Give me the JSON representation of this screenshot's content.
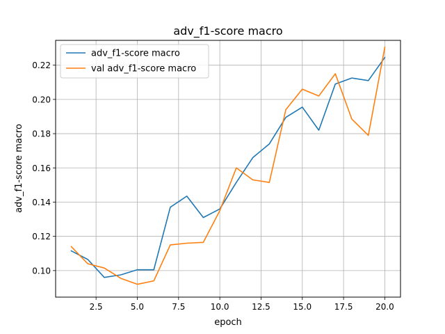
{
  "chart_data": {
    "type": "line",
    "title": "adv_f1-score macro",
    "xlabel": "epoch",
    "ylabel": "adv_f1-score macro",
    "xlim": [
      0.05,
      20.95
    ],
    "ylim": [
      0.0845,
      0.2345
    ],
    "x_ticks": [
      2.5,
      5.0,
      7.5,
      10.0,
      12.5,
      15.0,
      17.5,
      20.0
    ],
    "x_tick_labels": [
      "2.5",
      "5.0",
      "7.5",
      "10.0",
      "12.5",
      "15.0",
      "17.5",
      "20.0"
    ],
    "y_ticks": [
      0.1,
      0.12,
      0.14,
      0.16,
      0.18,
      0.2,
      0.22
    ],
    "y_tick_labels": [
      "0.10",
      "0.12",
      "0.14",
      "0.16",
      "0.18",
      "0.20",
      "0.22"
    ],
    "grid": true,
    "legend_position": "top-left",
    "x": [
      1,
      2,
      3,
      4,
      5,
      6,
      7,
      8,
      9,
      10,
      11,
      12,
      13,
      14,
      15,
      16,
      17,
      18,
      19,
      20
    ],
    "series": [
      {
        "name": "adv_f1-score macro",
        "color": "#1f77b4",
        "values": [
          0.1115,
          0.1065,
          0.096,
          0.0975,
          0.1005,
          0.1005,
          0.137,
          0.1435,
          0.131,
          0.136,
          0.1515,
          0.166,
          0.174,
          0.1895,
          0.1955,
          0.182,
          0.209,
          0.2125,
          0.211,
          0.2245
        ]
      },
      {
        "name": "val adv_f1-score macro",
        "color": "#ff7f0e",
        "values": [
          0.114,
          0.104,
          0.1015,
          0.0955,
          0.092,
          0.094,
          0.115,
          0.116,
          0.1165,
          0.135,
          0.16,
          0.153,
          0.1515,
          0.194,
          0.206,
          0.202,
          0.215,
          0.1885,
          0.179,
          0.2305
        ]
      }
    ]
  }
}
